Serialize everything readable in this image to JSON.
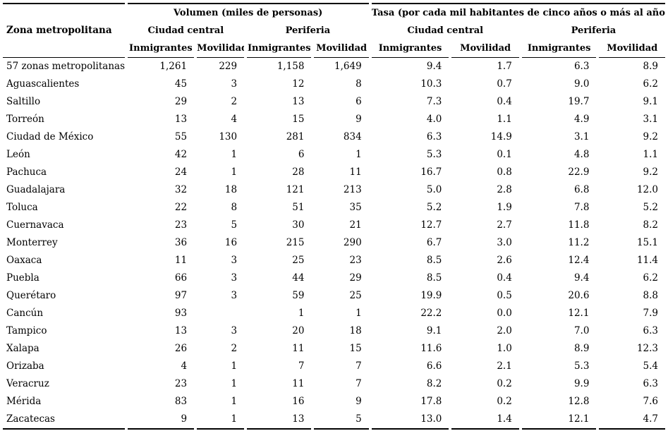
{
  "table": {
    "header": {
      "zona": "Zona metropolitana",
      "group_volumen": "Volumen (miles de personas)",
      "group_tasa": "Tasa (por cada mil habitantes de cinco años o más al año)",
      "ciudad_central": "Ciudad central",
      "periferia": "Periferia",
      "inmigrantes": "Inmigrantes",
      "movilidad": "Movilidad"
    },
    "rows": [
      {
        "zona": "57 zonas metropolitanas",
        "values": [
          "1,261",
          "229",
          "1,158",
          "1,649",
          "9.4",
          "1.7",
          "6.3",
          "8.9"
        ]
      },
      {
        "zona": "Aguascalientes",
        "values": [
          "45",
          "3",
          "12",
          "8",
          "10.3",
          "0.7",
          "9.0",
          "6.2"
        ]
      },
      {
        "zona": "Saltillo",
        "values": [
          "29",
          "2",
          "13",
          "6",
          "7.3",
          "0.4",
          "19.7",
          "9.1"
        ]
      },
      {
        "zona": "Torreón",
        "values": [
          "13",
          "4",
          "15",
          "9",
          "4.0",
          "1.1",
          "4.9",
          "3.1"
        ]
      },
      {
        "zona": "Ciudad de México",
        "values": [
          "55",
          "130",
          "281",
          "834",
          "6.3",
          "14.9",
          "3.1",
          "9.2"
        ]
      },
      {
        "zona": "León",
        "values": [
          "42",
          "1",
          "6",
          "1",
          "5.3",
          "0.1",
          "4.8",
          "1.1"
        ]
      },
      {
        "zona": "Pachuca",
        "values": [
          "24",
          "1",
          "28",
          "11",
          "16.7",
          "0.8",
          "22.9",
          "9.2"
        ]
      },
      {
        "zona": "Guadalajara",
        "values": [
          "32",
          "18",
          "121",
          "213",
          "5.0",
          "2.8",
          "6.8",
          "12.0"
        ]
      },
      {
        "zona": "Toluca",
        "values": [
          "22",
          "8",
          "51",
          "35",
          "5.2",
          "1.9",
          "7.8",
          "5.2"
        ]
      },
      {
        "zona": "Cuernavaca",
        "values": [
          "23",
          "5",
          "30",
          "21",
          "12.7",
          "2.7",
          "11.8",
          "8.2"
        ]
      },
      {
        "zona": "Monterrey",
        "values": [
          "36",
          "16",
          "215",
          "290",
          "6.7",
          "3.0",
          "11.2",
          "15.1"
        ]
      },
      {
        "zona": "Oaxaca",
        "values": [
          "11",
          "3",
          "25",
          "23",
          "8.5",
          "2.6",
          "12.4",
          "11.4"
        ]
      },
      {
        "zona": "Puebla",
        "values": [
          "66",
          "3",
          "44",
          "29",
          "8.5",
          "0.4",
          "9.4",
          "6.2"
        ]
      },
      {
        "zona": "Querétaro",
        "values": [
          "97",
          "3",
          "59",
          "25",
          "19.9",
          "0.5",
          "20.6",
          "8.8"
        ]
      },
      {
        "zona": "Cancún",
        "values": [
          "93",
          "",
          "1",
          "1",
          "22.2",
          "0.0",
          "12.1",
          "7.9"
        ]
      },
      {
        "zona": "Tampico",
        "values": [
          "13",
          "3",
          "20",
          "18",
          "9.1",
          "2.0",
          "7.0",
          "6.3"
        ]
      },
      {
        "zona": "Xalapa",
        "values": [
          "26",
          "2",
          "11",
          "15",
          "11.6",
          "1.0",
          "8.9",
          "12.3"
        ]
      },
      {
        "zona": "Orizaba",
        "values": [
          "4",
          "1",
          "7",
          "7",
          "6.6",
          "2.1",
          "5.3",
          "5.4"
        ]
      },
      {
        "zona": "Veracruz",
        "values": [
          "23",
          "1",
          "11",
          "7",
          "8.2",
          "0.2",
          "9.9",
          "6.3"
        ]
      },
      {
        "zona": "Mérida",
        "values": [
          "83",
          "1",
          "16",
          "9",
          "17.8",
          "0.2",
          "12.8",
          "7.6"
        ]
      },
      {
        "zona": "Zacatecas",
        "values": [
          "9",
          "1",
          "13",
          "5",
          "13.0",
          "1.4",
          "12.1",
          "4.7"
        ]
      }
    ]
  },
  "colors": {
    "text": "#000000",
    "background": "#ffffff",
    "rule": "#000000"
  }
}
